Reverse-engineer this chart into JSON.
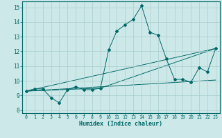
{
  "xlabel": "Humidex (Indice chaleur)",
  "xlim": [
    -0.5,
    23.5
  ],
  "ylim": [
    7.8,
    15.4
  ],
  "yticks": [
    8,
    9,
    10,
    11,
    12,
    13,
    14,
    15
  ],
  "xticks": [
    0,
    1,
    2,
    3,
    4,
    5,
    6,
    7,
    8,
    9,
    10,
    11,
    12,
    13,
    14,
    15,
    16,
    17,
    18,
    19,
    20,
    21,
    22,
    23
  ],
  "bg_color": "#cde8e8",
  "line_color": "#006868",
  "grid_color": "#aacece",
  "series_main": {
    "x": [
      0,
      1,
      2,
      3,
      4,
      5,
      6,
      7,
      8,
      9,
      10,
      11,
      12,
      13,
      14,
      15,
      16,
      17,
      18,
      19,
      20,
      21,
      22,
      23
    ],
    "y": [
      9.3,
      9.45,
      9.45,
      8.85,
      8.5,
      9.4,
      9.6,
      9.4,
      9.4,
      9.5,
      12.1,
      13.4,
      13.8,
      14.2,
      15.1,
      13.3,
      13.1,
      11.5,
      10.1,
      10.1,
      9.9,
      10.9,
      10.6,
      12.2
    ]
  },
  "series_straight": [
    {
      "x": [
        0,
        23
      ],
      "y": [
        9.3,
        12.2
      ]
    },
    {
      "x": [
        0,
        23
      ],
      "y": [
        9.3,
        10.05
      ]
    },
    {
      "x": [
        0,
        9,
        23
      ],
      "y": [
        9.3,
        9.5,
        12.2
      ]
    }
  ]
}
